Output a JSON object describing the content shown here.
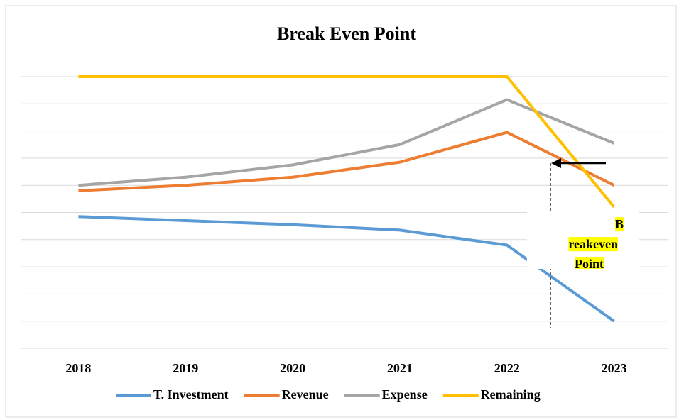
{
  "chart_data": {
    "type": "line",
    "title": "Break Even Point",
    "categories": [
      "2018",
      "2019",
      "2020",
      "2021",
      "2022",
      "2023"
    ],
    "series": [
      {
        "name": "T. Investment",
        "color": "#5b9bd5",
        "values": [
          4.85,
          4.7,
          4.55,
          4.35,
          3.8,
          1.0
        ]
      },
      {
        "name": "Revenue",
        "color": "#ed7d31",
        "values": [
          5.8,
          6.0,
          6.3,
          6.85,
          7.95,
          6.0
        ]
      },
      {
        "name": "Expense",
        "color": "#a5a5a5",
        "values": [
          6.0,
          6.3,
          6.75,
          7.5,
          9.15,
          7.55
        ]
      },
      {
        "name": "Remaining",
        "color": "#ffc000",
        "values": [
          10,
          10,
          10,
          10,
          10,
          5.2
        ]
      }
    ],
    "ylim": [
      0,
      10
    ],
    "yticks": [
      0,
      1,
      2,
      3,
      4,
      5,
      6,
      7,
      8,
      9,
      10
    ],
    "grid": true,
    "y_tick_labels": false,
    "legend": "bottom",
    "annotation": {
      "lines": [
        "B",
        "reakeven",
        "Point"
      ],
      "highlight": "#ffff00"
    }
  }
}
